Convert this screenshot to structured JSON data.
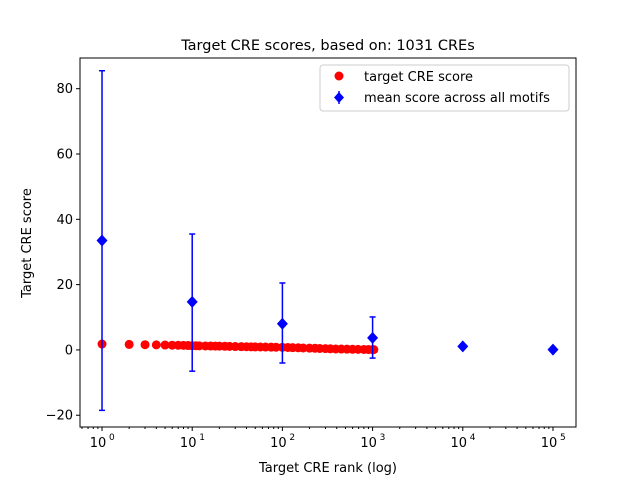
{
  "chart_data": {
    "type": "scatter",
    "title": "Target CRE scores, based on: 1031 CREs",
    "xlabel": "Target CRE rank (log)",
    "ylabel": "Target CRE score",
    "xscale": "log",
    "xlim": [
      0.57,
      180000
    ],
    "ylim": [
      -23.6,
      89.4
    ],
    "grid": false,
    "legend_position": "top-right",
    "x_ticks": [
      {
        "value": 1,
        "label": "10",
        "exp": "0"
      },
      {
        "value": 10,
        "label": "10",
        "exp": "1"
      },
      {
        "value": 100,
        "label": "10",
        "exp": "2"
      },
      {
        "value": 1000,
        "label": "10",
        "exp": "3"
      },
      {
        "value": 10000,
        "label": "10",
        "exp": "4"
      },
      {
        "value": 100000,
        "label": "10",
        "exp": "5"
      }
    ],
    "y_ticks": [
      -20,
      0,
      20,
      40,
      60,
      80
    ],
    "series": [
      {
        "name": "target CRE score",
        "color": "#ff0000",
        "marker": "circle",
        "x": [
          1,
          2,
          3,
          4,
          5,
          6,
          7,
          8,
          9,
          10,
          11,
          12,
          14,
          16,
          18,
          20,
          23,
          26,
          30,
          35,
          40,
          45,
          50,
          57,
          65,
          75,
          85,
          100,
          115,
          130,
          150,
          170,
          200,
          230,
          260,
          300,
          340,
          390,
          450,
          520,
          600,
          690,
          800,
          900,
          1000,
          1031
        ],
        "y": [
          1.8,
          1.7,
          1.6,
          1.55,
          1.5,
          1.45,
          1.42,
          1.4,
          1.35,
          1.3,
          1.28,
          1.26,
          1.22,
          1.2,
          1.17,
          1.15,
          1.12,
          1.09,
          1.05,
          1.0,
          0.98,
          0.95,
          0.92,
          0.9,
          0.88,
          0.85,
          0.83,
          0.8,
          0.75,
          0.7,
          0.65,
          0.6,
          0.55,
          0.5,
          0.45,
          0.4,
          0.35,
          0.3,
          0.27,
          0.24,
          0.2,
          0.17,
          0.14,
          0.12,
          0.1,
          0.1
        ]
      },
      {
        "name": "mean score across all motifs",
        "color": "#0000ff",
        "marker": "diamond",
        "x": [
          1,
          10,
          100,
          1000,
          10000,
          100000
        ],
        "y": [
          33.5,
          14.7,
          8.0,
          3.7,
          1.1,
          0.1
        ],
        "err_low": [
          -18.5,
          -6.5,
          -4.0,
          -2.5,
          0.6,
          0.0
        ],
        "err_high": [
          85.5,
          35.5,
          20.5,
          10.1,
          1.6,
          0.2
        ]
      }
    ]
  }
}
